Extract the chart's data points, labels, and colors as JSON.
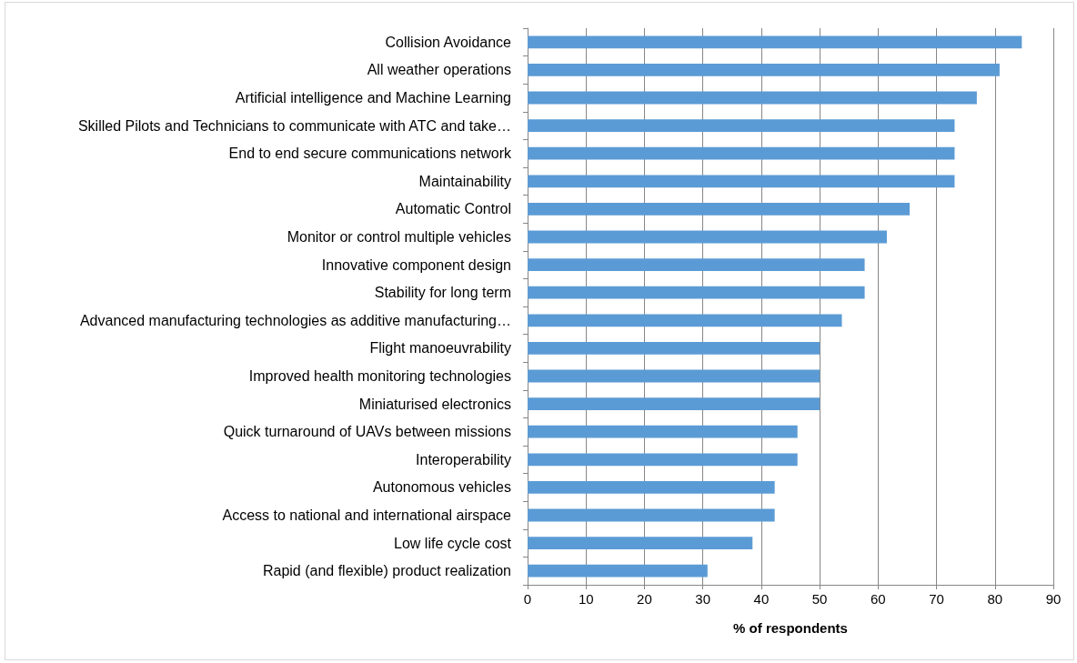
{
  "chart_data": {
    "type": "bar",
    "orientation": "horizontal",
    "xlabel": "% of respondents",
    "categories": [
      "Collision Avoidance",
      "All weather operations",
      "Artificial intelligence and Machine Learning",
      "Skilled Pilots and Technicians to communicate with ATC and take…",
      "End to end secure communications network",
      "Maintainability",
      "Automatic Control",
      "Monitor or control multiple vehicles",
      "Innovative component design",
      "Stability for long term",
      "Advanced manufacturing technologies as additive manufacturing…",
      "Flight manoeuvrability",
      "Improved health monitoring technologies",
      "Miniaturised electronics",
      "Quick turnaround of UAVs between missions",
      "Interoperability",
      "Autonomous vehicles",
      "Access to national and international airspace",
      "Low life cycle cost",
      "Rapid (and flexible) product realization"
    ],
    "values": [
      84.6,
      80.8,
      76.9,
      73.1,
      73.1,
      73.1,
      65.4,
      61.5,
      57.7,
      57.7,
      53.8,
      50,
      50,
      50,
      46.2,
      46.2,
      42.3,
      42.3,
      38.5,
      30.8
    ],
    "color": "#5b9bd5",
    "xlim": [
      0,
      90
    ],
    "xticks": [
      0,
      10,
      20,
      30,
      40,
      50,
      60,
      70,
      80,
      90
    ],
    "grid": "x"
  }
}
